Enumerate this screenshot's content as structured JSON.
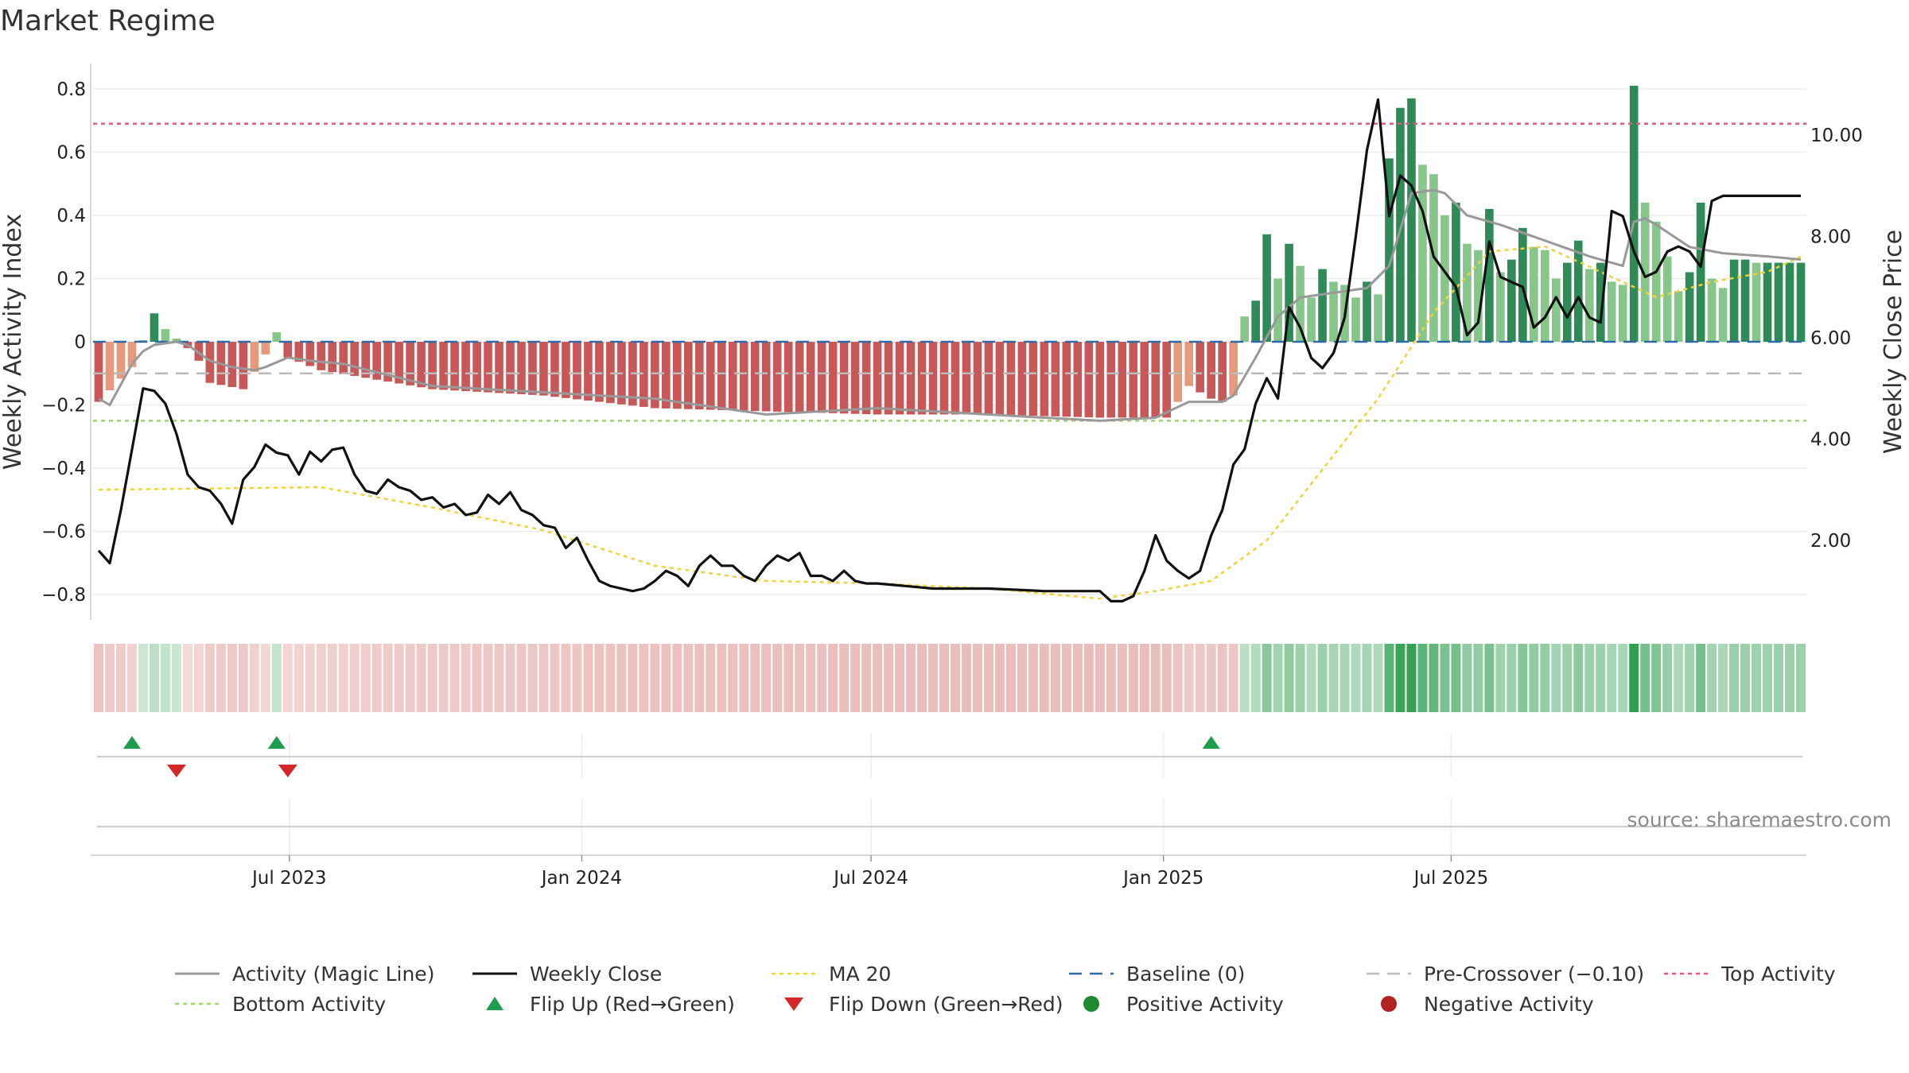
{
  "title": "Market Regime",
  "source": "source: sharemaestro.com",
  "colors": {
    "bar_green_dark": "#2e8b57",
    "bar_green_light": "#86c68a",
    "bar_red_dark": "#c85757",
    "bar_red_light": "#e79a7b",
    "magic_line": "#999999",
    "weekly_close": "#111111",
    "ma20": "#f0d23a",
    "baseline": "#2e6aa8",
    "pre_crossover": "#bbbbbb",
    "top_activity": "#e8547a",
    "bottom_activity": "#9fd46a",
    "flip_up": "#1d9e4f",
    "flip_down": "#d62728",
    "positive": "#1f8a2f",
    "negative": "#b22222"
  },
  "chart_data": {
    "type": "bar",
    "weeks": 154,
    "start_date": "2023-03-03",
    "left_axis": {
      "label": "Weekly Activity Index",
      "range": [
        -0.88,
        0.88
      ],
      "ticks": [
        "0.8",
        "0.6",
        "0.4",
        "0.2",
        "0",
        "−0.2",
        "−0.4",
        "−0.6",
        "−0.8"
      ],
      "tick_values": [
        0.8,
        0.6,
        0.4,
        0.2,
        0,
        -0.2,
        -0.4,
        -0.6,
        -0.8
      ]
    },
    "right_axis": {
      "label": "Weekly Close Price",
      "range": [
        0.43,
        11.41
      ],
      "ticks": [
        "10.00",
        "8.00",
        "6.00",
        "4.00",
        "2.00"
      ],
      "tick_values": [
        10,
        8,
        6,
        4,
        2
      ]
    },
    "x_ticks": [
      {
        "label": "Jul 2023",
        "date": "2023-07-01"
      },
      {
        "label": "Jan 2024",
        "date": "2024-01-01"
      },
      {
        "label": "Jul 2024",
        "date": "2024-07-01"
      },
      {
        "label": "Jan 2025",
        "date": "2025-01-01"
      },
      {
        "label": "Jul 2025",
        "date": "2025-07-01"
      }
    ],
    "activity_keyframes": [
      [
        0,
        -0.19
      ],
      [
        3,
        -0.08
      ],
      [
        5,
        0.09
      ],
      [
        6,
        0.04
      ],
      [
        7,
        0.01
      ],
      [
        8,
        -0.02
      ],
      [
        9,
        -0.06
      ],
      [
        10,
        -0.13
      ],
      [
        13,
        -0.15
      ],
      [
        15,
        -0.04
      ],
      [
        16,
        0.03
      ],
      [
        17,
        -0.05
      ],
      [
        20,
        -0.09
      ],
      [
        30,
        -0.15
      ],
      [
        40,
        -0.17
      ],
      [
        50,
        -0.21
      ],
      [
        60,
        -0.22
      ],
      [
        70,
        -0.23
      ],
      [
        80,
        -0.23
      ],
      [
        90,
        -0.24
      ],
      [
        96,
        -0.24
      ],
      [
        98,
        -0.14
      ],
      [
        100,
        -0.18
      ],
      [
        101,
        -0.19
      ],
      [
        102,
        -0.17
      ],
      [
        103,
        0.08
      ],
      [
        104,
        0.13
      ],
      [
        105,
        0.34
      ],
      [
        106,
        0.2
      ],
      [
        107,
        0.31
      ],
      [
        108,
        0.24
      ],
      [
        109,
        0.14
      ],
      [
        110,
        0.23
      ],
      [
        111,
        0.19
      ],
      [
        112,
        0.18
      ],
      [
        113,
        0.14
      ],
      [
        114,
        0.19
      ],
      [
        115,
        0.15
      ],
      [
        116,
        0.58
      ],
      [
        117,
        0.74
      ],
      [
        118,
        0.77
      ],
      [
        119,
        0.56
      ],
      [
        120,
        0.53
      ],
      [
        121,
        0.4
      ],
      [
        122,
        0.44
      ],
      [
        123,
        0.31
      ],
      [
        124,
        0.29
      ],
      [
        125,
        0.42
      ],
      [
        126,
        0.22
      ],
      [
        127,
        0.26
      ],
      [
        128,
        0.36
      ],
      [
        129,
        0.3
      ],
      [
        130,
        0.29
      ],
      [
        131,
        0.2
      ],
      [
        132,
        0.25
      ],
      [
        133,
        0.32
      ],
      [
        134,
        0.23
      ],
      [
        135,
        0.25
      ],
      [
        136,
        0.19
      ],
      [
        137,
        0.18
      ],
      [
        138,
        0.81
      ],
      [
        139,
        0.44
      ],
      [
        140,
        0.38
      ],
      [
        141,
        0.27
      ],
      [
        142,
        0.16
      ],
      [
        143,
        0.22
      ],
      [
        144,
        0.44
      ],
      [
        145,
        0.2
      ],
      [
        146,
        0.17
      ],
      [
        147,
        0.26
      ],
      [
        148,
        0.26
      ],
      [
        149,
        0.25
      ],
      [
        150,
        0.25
      ],
      [
        151,
        0.25
      ],
      [
        152,
        0.25
      ],
      [
        153,
        0.25
      ]
    ],
    "magic_keyframes": [
      [
        0,
        -0.18
      ],
      [
        1,
        -0.2
      ],
      [
        3,
        -0.07
      ],
      [
        4,
        -0.03
      ],
      [
        5,
        -0.01
      ],
      [
        7,
        0.0
      ],
      [
        8,
        -0.01
      ],
      [
        10,
        -0.06
      ],
      [
        12,
        -0.08
      ],
      [
        14,
        -0.09
      ],
      [
        15,
        -0.08
      ],
      [
        17,
        -0.05
      ],
      [
        19,
        -0.06
      ],
      [
        22,
        -0.07
      ],
      [
        30,
        -0.14
      ],
      [
        40,
        -0.16
      ],
      [
        50,
        -0.18
      ],
      [
        60,
        -0.23
      ],
      [
        70,
        -0.21
      ],
      [
        80,
        -0.23
      ],
      [
        90,
        -0.25
      ],
      [
        95,
        -0.24
      ],
      [
        98,
        -0.19
      ],
      [
        100,
        -0.19
      ],
      [
        101,
        -0.19
      ],
      [
        102,
        -0.17
      ],
      [
        104,
        -0.05
      ],
      [
        106,
        0.08
      ],
      [
        108,
        0.14
      ],
      [
        110,
        0.15
      ],
      [
        114,
        0.17
      ],
      [
        116,
        0.24
      ],
      [
        118,
        0.47
      ],
      [
        120,
        0.48
      ],
      [
        121,
        0.47
      ],
      [
        123,
        0.4
      ],
      [
        126,
        0.37
      ],
      [
        130,
        0.32
      ],
      [
        134,
        0.27
      ],
      [
        137,
        0.24
      ],
      [
        138,
        0.38
      ],
      [
        139,
        0.39
      ],
      [
        140,
        0.37
      ],
      [
        143,
        0.3
      ],
      [
        146,
        0.28
      ],
      [
        150,
        0.27
      ],
      [
        153,
        0.26
      ]
    ],
    "close_keyframes": [
      [
        0,
        1.8
      ],
      [
        1,
        1.55
      ],
      [
        2,
        2.6
      ],
      [
        3,
        3.8
      ],
      [
        4,
        5.0
      ],
      [
        5,
        4.95
      ],
      [
        6,
        4.7
      ],
      [
        7,
        4.1
      ],
      [
        8,
        3.3
      ],
      [
        9,
        3.05
      ],
      [
        10,
        2.98
      ],
      [
        11,
        2.72
      ],
      [
        12,
        2.33
      ],
      [
        13,
        3.2
      ],
      [
        14,
        3.45
      ],
      [
        15,
        3.89
      ],
      [
        16,
        3.73
      ],
      [
        17,
        3.68
      ],
      [
        18,
        3.3
      ],
      [
        19,
        3.75
      ],
      [
        20,
        3.56
      ],
      [
        21,
        3.79
      ],
      [
        22,
        3.83
      ],
      [
        23,
        3.3
      ],
      [
        24,
        2.98
      ],
      [
        25,
        2.92
      ],
      [
        26,
        3.2
      ],
      [
        27,
        3.05
      ],
      [
        28,
        2.98
      ],
      [
        29,
        2.8
      ],
      [
        30,
        2.85
      ],
      [
        31,
        2.65
      ],
      [
        32,
        2.72
      ],
      [
        33,
        2.5
      ],
      [
        34,
        2.55
      ],
      [
        35,
        2.9
      ],
      [
        36,
        2.72
      ],
      [
        37,
        2.95
      ],
      [
        38,
        2.6
      ],
      [
        39,
        2.5
      ],
      [
        40,
        2.3
      ],
      [
        41,
        2.25
      ],
      [
        42,
        1.85
      ],
      [
        43,
        2.05
      ],
      [
        44,
        1.6
      ],
      [
        45,
        1.2
      ],
      [
        46,
        1.1
      ],
      [
        47,
        1.05
      ],
      [
        48,
        1.0
      ],
      [
        49,
        1.05
      ],
      [
        50,
        1.2
      ],
      [
        51,
        1.4
      ],
      [
        52,
        1.3
      ],
      [
        53,
        1.1
      ],
      [
        54,
        1.5
      ],
      [
        55,
        1.7
      ],
      [
        56,
        1.5
      ],
      [
        57,
        1.5
      ],
      [
        58,
        1.3
      ],
      [
        59,
        1.2
      ],
      [
        60,
        1.5
      ],
      [
        61,
        1.7
      ],
      [
        62,
        1.6
      ],
      [
        63,
        1.75
      ],
      [
        64,
        1.3
      ],
      [
        65,
        1.3
      ],
      [
        66,
        1.2
      ],
      [
        67,
        1.4
      ],
      [
        68,
        1.2
      ],
      [
        69,
        1.15
      ],
      [
        70,
        1.15
      ],
      [
        75,
        1.05
      ],
      [
        80,
        1.05
      ],
      [
        85,
        1.0
      ],
      [
        90,
        1.0
      ],
      [
        91,
        0.8
      ],
      [
        92,
        0.8
      ],
      [
        93,
        0.9
      ],
      [
        94,
        1.4
      ],
      [
        95,
        2.1
      ],
      [
        96,
        1.6
      ],
      [
        97,
        1.4
      ],
      [
        98,
        1.25
      ],
      [
        99,
        1.4
      ],
      [
        100,
        2.1
      ],
      [
        101,
        2.6
      ],
      [
        102,
        3.5
      ],
      [
        103,
        3.8
      ],
      [
        104,
        4.7
      ],
      [
        105,
        5.2
      ],
      [
        106,
        4.8
      ],
      [
        107,
        6.6
      ],
      [
        108,
        6.2
      ],
      [
        109,
        5.6
      ],
      [
        110,
        5.4
      ],
      [
        111,
        5.7
      ],
      [
        112,
        6.4
      ],
      [
        113,
        8.0
      ],
      [
        114,
        9.7
      ],
      [
        115,
        10.7
      ],
      [
        116,
        8.4
      ],
      [
        117,
        9.2
      ],
      [
        118,
        9.0
      ],
      [
        119,
        8.5
      ],
      [
        120,
        7.6
      ],
      [
        121,
        7.3
      ],
      [
        122,
        7.0
      ],
      [
        123,
        6.05
      ],
      [
        124,
        6.3
      ],
      [
        125,
        7.9
      ],
      [
        126,
        7.2
      ],
      [
        127,
        7.1
      ],
      [
        128,
        7.0
      ],
      [
        129,
        6.2
      ],
      [
        130,
        6.4
      ],
      [
        131,
        6.8
      ],
      [
        132,
        6.4
      ],
      [
        133,
        6.8
      ],
      [
        134,
        6.4
      ],
      [
        135,
        6.3
      ],
      [
        136,
        8.5
      ],
      [
        137,
        8.4
      ],
      [
        138,
        7.7
      ],
      [
        139,
        7.2
      ],
      [
        140,
        7.3
      ],
      [
        141,
        7.7
      ],
      [
        142,
        7.8
      ],
      [
        143,
        7.7
      ],
      [
        144,
        7.4
      ],
      [
        145,
        8.7
      ],
      [
        146,
        8.8
      ],
      [
        147,
        8.8
      ],
      [
        153,
        8.8
      ]
    ],
    "ma20_keyframes": [
      [
        0,
        3.0
      ],
      [
        20,
        3.05
      ],
      [
        30,
        2.65
      ],
      [
        40,
        2.2
      ],
      [
        50,
        1.5
      ],
      [
        60,
        1.2
      ],
      [
        70,
        1.15
      ],
      [
        80,
        1.05
      ],
      [
        90,
        0.85
      ],
      [
        95,
        1.0
      ],
      [
        100,
        1.2
      ],
      [
        105,
        2.0
      ],
      [
        110,
        3.4
      ],
      [
        115,
        4.8
      ],
      [
        120,
        6.5
      ],
      [
        125,
        7.7
      ],
      [
        130,
        7.8
      ],
      [
        135,
        7.3
      ],
      [
        140,
        6.8
      ],
      [
        145,
        7.1
      ],
      [
        150,
        7.3
      ],
      [
        153,
        7.6
      ]
    ],
    "pre_crossover": -0.1,
    "top_activity": 0.69,
    "bottom_activity": -0.25,
    "flip_up_weeks": [
      3,
      16,
      100
    ],
    "flip_down_weeks": [
      7,
      17
    ],
    "legend": [
      {
        "label": "Activity (Magic Line)",
        "style": "solid-gray"
      },
      {
        "label": "Weekly Close",
        "style": "solid-black"
      },
      {
        "label": "MA 20",
        "style": "dotted-yellow"
      },
      {
        "label": "Baseline (0)",
        "style": "dashed-blue"
      },
      {
        "label": "Pre-Crossover (−0.10)",
        "style": "dashed-gray"
      },
      {
        "label": "Top Activity",
        "style": "dotted-pink"
      },
      {
        "label": "Bottom Activity",
        "style": "dotted-green"
      },
      {
        "label": "Flip Up (Red→Green)",
        "style": "triangle-up"
      },
      {
        "label": "Flip Down (Green→Red)",
        "style": "triangle-down"
      },
      {
        "label": "Positive Activity",
        "style": "circle-green"
      },
      {
        "label": "Negative Activity",
        "style": "circle-red"
      }
    ]
  }
}
